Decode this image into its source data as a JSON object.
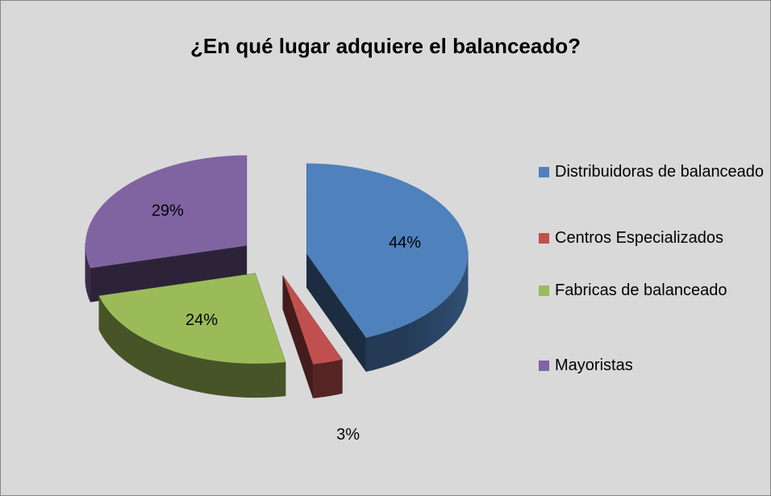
{
  "chart_data": {
    "type": "pie",
    "title": "¿En qué lugar adquiere el balanceado?",
    "categories": [
      "Distribuidoras de balanceado",
      "Centros Especializados",
      "Fabricas de balanceado",
      "Mayoristas"
    ],
    "values": [
      44,
      3,
      24,
      29
    ],
    "value_labels": [
      "44%",
      "3%",
      "24%",
      "29%"
    ],
    "colors": [
      "#4f81bd",
      "#c0504d",
      "#9bbb59",
      "#8064a2"
    ],
    "legend": "right"
  }
}
